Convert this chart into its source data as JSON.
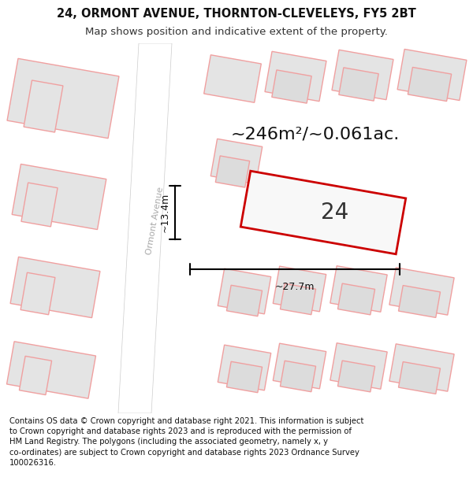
{
  "title_line1": "24, ORMONT AVENUE, THORNTON-CLEVELEYS, FY5 2BT",
  "title_line2": "Map shows position and indicative extent of the property.",
  "area_text": "~246m²/~0.061ac.",
  "width_label": "~27.7m",
  "height_label": "~13.4m",
  "number_label": "24",
  "road_label": "Ormont Avenue",
  "footer_line1": "Contains OS data © Crown copyright and database right 2021. This information is subject",
  "footer_line2": "to Crown copyright and database rights 2023 and is reproduced with the permission of",
  "footer_line3": "HM Land Registry. The polygons (including the associated geometry, namely x, y",
  "footer_line4": "co-ordinates) are subject to Crown copyright and database rights 2023 Ordnance Survey",
  "footer_line5": "100026316.",
  "bg_color": "#ffffff",
  "map_bg": "#efefef",
  "building_fill": "#e4e4e4",
  "building_edge_color": "#f0a0a0",
  "highlight_fill": "#f8f8f8",
  "highlight_edge": "#cc0000",
  "road_fill": "#ffffff",
  "title_fontsize": 10.5,
  "subtitle_fontsize": 9.5,
  "area_fontsize": 16,
  "number_fontsize": 20,
  "road_fontsize": 8,
  "footer_fontsize": 7.2
}
